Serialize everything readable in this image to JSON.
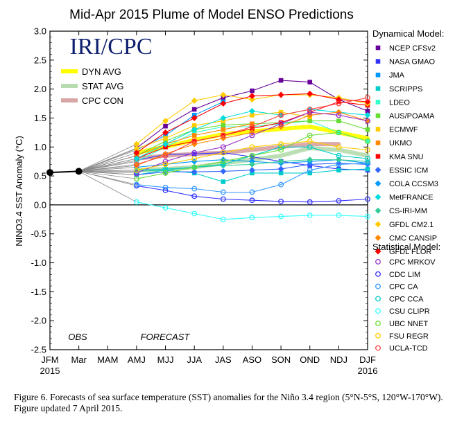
{
  "chart_data": {
    "type": "line",
    "title": "Mid-Apr 2015 Plume of Model ENSO Predictions",
    "logo": "IRI/CPC",
    "ylabel": "NINO3.4 SST Anomaly (°C)",
    "xlabel": "",
    "categories": [
      "JFM",
      "Mar",
      "MAM",
      "AMJ",
      "MJJ",
      "JJA",
      "JAS",
      "ASO",
      "SON",
      "OND",
      "NDJ",
      "DJF"
    ],
    "year_labels": {
      "start": "2015",
      "end": "2016"
    },
    "ylim": [
      -2.5,
      3.0
    ],
    "yticks": [
      "3.0",
      "2.5",
      "2.0",
      "1.5",
      "1.0",
      "0.5",
      "0.0",
      "-0.5",
      "-1.0",
      "-1.5",
      "-2.0",
      "-2.5"
    ],
    "yticks_values": [
      3.0,
      2.5,
      2.0,
      1.5,
      1.0,
      0.5,
      0.0,
      -0.5,
      -1.0,
      -1.5,
      -2.0,
      -2.5
    ],
    "grid": false,
    "annotations": {
      "obs": "OBS",
      "forecast": "FORECAST"
    },
    "observed": {
      "categories": [
        "JFM",
        "Mar"
      ],
      "values": [
        0.56,
        0.58
      ],
      "color": "#000000"
    },
    "averages": [
      {
        "name": "DYN AVG",
        "color": "#ffff00",
        "values": [
          null,
          null,
          null,
          0.9,
          1.0,
          1.12,
          1.22,
          1.27,
          1.31,
          1.35,
          1.25,
          1.15
        ]
      },
      {
        "name": "STAT AVG",
        "color": "#b8dcb0",
        "values": [
          null,
          null,
          null,
          0.6,
          0.62,
          0.65,
          0.72,
          0.78,
          0.85,
          0.98,
          0.95,
          0.85
        ]
      },
      {
        "name": "CPC CON",
        "color": "#d9a6a6",
        "values": [
          null,
          null,
          null,
          0.8,
          0.85,
          0.88,
          0.9,
          0.95,
          1.0,
          1.05,
          1.05,
          null
        ]
      }
    ],
    "legend_headers": {
      "dynamical": "Dynamical Model:",
      "statistical": "Statistical Model:"
    },
    "legend_placement": "right",
    "series": [
      {
        "name": "NCEP CFSv2",
        "group": "dynamical",
        "marker": "square",
        "color": "#660099",
        "values": [
          null,
          null,
          null,
          0.98,
          1.36,
          1.65,
          1.85,
          1.97,
          2.15,
          2.12,
          1.82,
          1.62
        ]
      },
      {
        "name": "NASA GMAO",
        "group": "dynamical",
        "marker": "square",
        "color": "#3333ff",
        "values": [
          null,
          null,
          null,
          0.77,
          0.87,
          0.88,
          0.9,
          0.83,
          0.75,
          0.68,
          0.62,
          0.6
        ]
      },
      {
        "name": "JMA",
        "group": "dynamical",
        "marker": "square",
        "color": "#0099ff",
        "values": [
          null,
          null,
          null,
          0.95,
          1.2,
          1.55,
          1.78,
          null,
          null,
          null,
          null,
          null
        ]
      },
      {
        "name": "SCRIPPS",
        "group": "dynamical",
        "marker": "square",
        "color": "#00cccc",
        "values": [
          null,
          null,
          null,
          0.52,
          0.6,
          0.55,
          0.4,
          0.55,
          0.55,
          0.55,
          0.6,
          0.62
        ]
      },
      {
        "name": "LDEO",
        "group": "dynamical",
        "marker": "square",
        "color": "#33ffcc",
        "values": [
          null,
          null,
          null,
          0.75,
          1.0,
          1.25,
          1.35,
          1.35,
          1.4,
          1.45,
          1.25,
          1.1
        ]
      },
      {
        "name": "AUS/POAMA",
        "group": "dynamical",
        "marker": "square",
        "color": "#66dd33",
        "values": [
          null,
          null,
          null,
          0.85,
          1.1,
          1.3,
          1.38,
          1.4,
          1.42,
          1.45,
          1.45,
          1.3
        ]
      },
      {
        "name": "ECMWF",
        "group": "dynamical",
        "marker": "square",
        "color": "#ffcc00",
        "values": [
          null,
          null,
          null,
          0.97,
          1.15,
          1.37,
          1.45,
          1.55,
          1.6,
          1.52,
          null,
          null
        ]
      },
      {
        "name": "UKMO",
        "group": "dynamical",
        "marker": "square",
        "color": "#ff8800",
        "values": [
          null,
          null,
          null,
          0.85,
          1.05,
          1.2,
          1.3,
          1.4,
          null,
          null,
          null,
          null
        ]
      },
      {
        "name": "KMA SNU",
        "group": "dynamical",
        "marker": "square",
        "color": "#ff0000",
        "values": [
          null,
          null,
          null,
          0.8,
          1.0,
          1.1,
          1.2,
          1.32,
          1.42,
          1.6,
          1.78,
          1.72
        ]
      },
      {
        "name": "ESSIC ICM",
        "group": "dynamical",
        "marker": "diamond",
        "color": "#3366ff",
        "values": [
          null,
          null,
          null,
          0.52,
          0.57,
          0.57,
          0.58,
          0.6,
          0.62,
          0.7,
          0.72,
          0.7
        ]
      },
      {
        "name": "COLA CCSM3",
        "group": "dynamical",
        "marker": "diamond",
        "color": "#0099ff",
        "values": [
          null,
          null,
          null,
          0.65,
          0.7,
          0.75,
          0.78,
          0.75,
          0.72,
          0.75,
          0.78,
          0.72
        ]
      },
      {
        "name": "MetFRANCE",
        "group": "dynamical",
        "marker": "diamond",
        "color": "#00dddd",
        "values": [
          null,
          null,
          null,
          0.8,
          1.05,
          1.3,
          1.5,
          1.62,
          1.55,
          1.65,
          1.6,
          1.55
        ]
      },
      {
        "name": "CS-IRI-MM",
        "group": "dynamical",
        "marker": "diamond",
        "color": "#33cc99",
        "values": [
          null,
          null,
          null,
          0.58,
          0.6,
          0.65,
          0.68,
          0.7,
          0.75,
          0.78,
          0.78,
          0.75
        ]
      },
      {
        "name": "GFDL CM2.1",
        "group": "dynamical",
        "marker": "diamond",
        "color": "#ffcc00",
        "values": [
          null,
          null,
          null,
          1.05,
          1.45,
          1.8,
          1.9,
          1.82,
          1.9,
          1.9,
          1.85,
          1.75
        ]
      },
      {
        "name": "CMC CANSIP",
        "group": "dynamical",
        "marker": "diamond",
        "color": "#ff8800",
        "values": [
          null,
          null,
          null,
          0.68,
          0.88,
          1.05,
          1.15,
          1.25,
          1.35,
          1.55,
          1.6,
          1.45
        ]
      },
      {
        "name": "GFDL FLOR",
        "group": "dynamical",
        "marker": "diamond",
        "color": "#ff0000",
        "values": [
          null,
          null,
          null,
          0.9,
          1.25,
          1.5,
          1.75,
          1.88,
          1.9,
          1.92,
          1.82,
          1.78
        ]
      },
      {
        "name": "CPC MRKOV",
        "group": "statistical",
        "marker": "circle",
        "color": "#9933cc",
        "values": [
          null,
          null,
          null,
          0.55,
          0.75,
          0.9,
          1.0,
          1.2,
          1.4,
          1.6,
          1.55,
          1.45
        ]
      },
      {
        "name": "CDC LIM",
        "group": "statistical",
        "marker": "circle",
        "color": "#3333ff",
        "values": [
          null,
          null,
          null,
          0.33,
          0.25,
          0.15,
          0.1,
          0.08,
          0.06,
          0.05,
          0.07,
          0.1
        ]
      },
      {
        "name": "CPC CA",
        "group": "statistical",
        "marker": "circle",
        "color": "#3399ff",
        "values": [
          null,
          null,
          null,
          0.35,
          0.3,
          0.28,
          0.22,
          0.22,
          0.35,
          0.6,
          0.7,
          0.72
        ]
      },
      {
        "name": "CPC CCA",
        "group": "statistical",
        "marker": "circle",
        "color": "#00cccc",
        "values": [
          null,
          null,
          null,
          0.6,
          0.62,
          0.65,
          0.7,
          0.85,
          1.0,
          1.0,
          0.85,
          0.8
        ]
      },
      {
        "name": "CSU CLIPR",
        "group": "statistical",
        "marker": "circle",
        "color": "#33ffff",
        "values": [
          null,
          null,
          null,
          0.05,
          -0.05,
          -0.15,
          -0.25,
          -0.22,
          -0.2,
          -0.18,
          -0.18,
          -0.2
        ]
      },
      {
        "name": "UBC NNET",
        "group": "statistical",
        "marker": "circle",
        "color": "#66dd33",
        "values": [
          null,
          null,
          null,
          0.45,
          0.55,
          0.65,
          0.75,
          0.85,
          0.95,
          1.2,
          1.25,
          1.1
        ]
      },
      {
        "name": "FSU REGR",
        "group": "statistical",
        "marker": "circle",
        "color": "#ffcc00",
        "values": [
          null,
          null,
          null,
          0.6,
          0.7,
          0.8,
          0.9,
          1.0,
          1.05,
          1.1,
          1.0,
          0.95
        ]
      },
      {
        "name": "UCLA-TCD",
        "group": "statistical",
        "marker": "circle",
        "color": "#ff4444",
        "values": [
          null,
          null,
          null,
          0.7,
          0.85,
          1.1,
          1.2,
          1.35,
          1.55,
          1.65,
          1.75,
          1.85
        ]
      }
    ]
  },
  "caption": "Figure 6. Forecasts of sea surface temperature (SST) anomalies for the Niño 3.4 region (5°N-5°S, 120°W-170°W). Figure updated 7 April 2015."
}
